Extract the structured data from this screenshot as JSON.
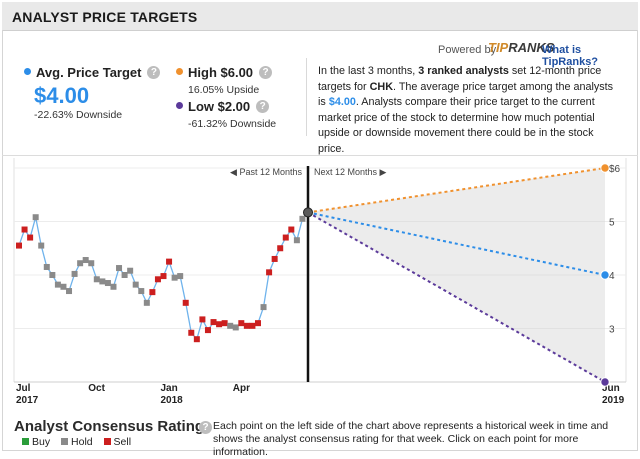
{
  "header": {
    "title": "ANALYST PRICE TARGETS"
  },
  "branding": {
    "powered_by": "Powered by",
    "logo_tip": "TIP",
    "logo_ranks": "RANKS",
    "what_is": "What is TipRanks?"
  },
  "avg": {
    "label": "Avg. Price Target",
    "value": "$4.00",
    "change": "-22.63% Downside",
    "color": "#2c8de8"
  },
  "high": {
    "label": "High $6.00",
    "change": "16.05% Upside",
    "color": "#f0912e"
  },
  "low": {
    "label": "Low $2.00",
    "change": "-61.32% Downside",
    "color": "#5b3a9a"
  },
  "description": {
    "p1": "In the last 3 months, ",
    "analysts": "3 ranked analysts",
    "p2": " set 12-month price targets for ",
    "ticker": "CHK",
    "p3": ". The average price target among the analysts is ",
    "avg": "$4.00",
    "p4": ". Analysts compare their price target to the current market price of the stock to determine how much potential upside or downside movement there could be in the stock price."
  },
  "bottom": {
    "title": "Analyst Consensus Rating",
    "text": "Each point on the left side of the chart above represents a historical week in time and shows the analyst consensus rating for that week. Click on each point for more information.",
    "legend": [
      {
        "label": "Buy",
        "color": "#2a9d3a"
      },
      {
        "label": "Hold",
        "color": "#8a8a8a"
      },
      {
        "label": "Sell",
        "color": "#cc1f1f"
      }
    ]
  },
  "chart_data": {
    "type": "line",
    "title": "Analyst Price Targets",
    "past_label": "Past 12 Months",
    "next_label": "Next 12 Months",
    "ylim": [
      2,
      6
    ],
    "ytick_labels": [
      {
        "label": "$6",
        "value": 6
      },
      {
        "label": "5",
        "value": 5
      },
      {
        "label": "4",
        "value": 4
      },
      {
        "label": "3",
        "value": 3
      }
    ],
    "xtick_labels": [
      {
        "top": "Jul",
        "bottom": "2017",
        "week": 0
      },
      {
        "top": "Oct",
        "bottom": "",
        "week": 13
      },
      {
        "top": "Jan",
        "bottom": "2018",
        "week": 26
      },
      {
        "top": "Apr",
        "bottom": "",
        "week": 39
      },
      {
        "top": "Jun",
        "bottom": "2019",
        "week": 104
      }
    ],
    "now_week": 52,
    "current_price": 5.17,
    "history": {
      "ratings": [
        "Sell",
        "Sell",
        "Sell",
        "Hold",
        "Hold",
        "Hold",
        "Hold",
        "Hold",
        "Hold",
        "Hold",
        "Hold",
        "Hold",
        "Hold",
        "Hold",
        "Hold",
        "Hold",
        "Hold",
        "Hold",
        "Hold",
        "Hold",
        "Hold",
        "Hold",
        "Hold",
        "Hold",
        "Sell",
        "Sell",
        "Sell",
        "Sell",
        "Hold",
        "Hold",
        "Sell",
        "Sell",
        "Sell",
        "Sell",
        "Sell",
        "Sell",
        "Sell",
        "Sell",
        "Hold",
        "Hold",
        "Sell",
        "Sell",
        "Sell",
        "Sell",
        "Hold",
        "Sell",
        "Sell",
        "Sell",
        "Sell",
        "Sell",
        "Hold",
        "Hold",
        "Hold"
      ],
      "prices": [
        4.55,
        4.85,
        4.7,
        5.08,
        4.55,
        4.15,
        4.0,
        3.82,
        3.78,
        3.7,
        4.02,
        4.22,
        4.28,
        4.22,
        3.92,
        3.88,
        3.85,
        3.78,
        4.13,
        4.0,
        4.08,
        3.82,
        3.7,
        3.48,
        3.68,
        3.92,
        3.98,
        4.25,
        3.95,
        3.98,
        3.48,
        2.92,
        2.8,
        3.17,
        2.97,
        3.12,
        3.08,
        3.1,
        3.05,
        3.02,
        3.1,
        3.05,
        3.05,
        3.1,
        3.4,
        4.05,
        4.3,
        4.5,
        4.7,
        4.85,
        4.65,
        5.05,
        5.17
      ]
    },
    "projections": [
      {
        "name": "High",
        "value": 6.0,
        "color": "#f0912e"
      },
      {
        "name": "Average",
        "value": 4.0,
        "color": "#2c8de8"
      },
      {
        "name": "Low",
        "value": 2.0,
        "color": "#5b3a9a"
      }
    ],
    "line_color": "#6fb3ec",
    "rating_colors": {
      "Buy": "#2a9d3a",
      "Hold": "#8a8a8a",
      "Sell": "#cc1f1f"
    }
  }
}
